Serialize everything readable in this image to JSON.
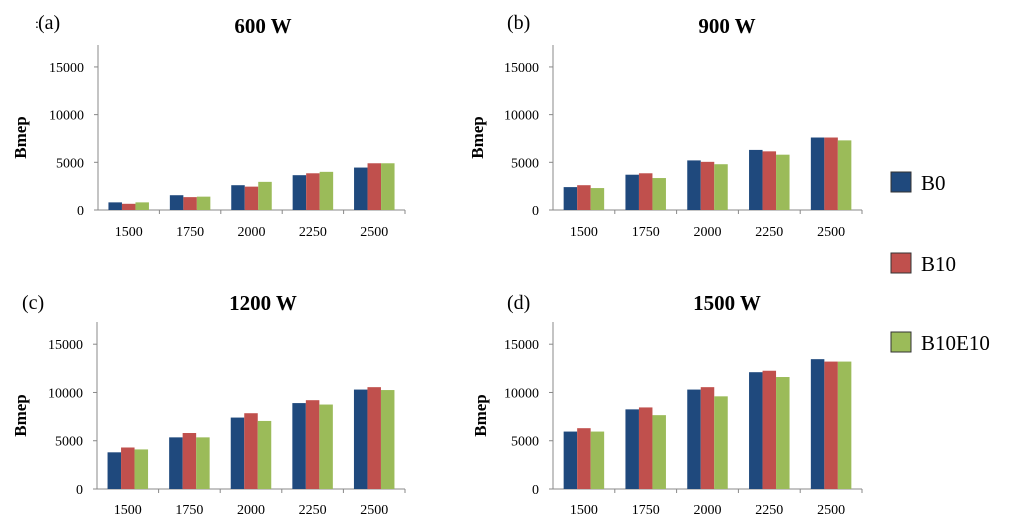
{
  "figure": {
    "stray_mark": ":"
  },
  "legend": [
    {
      "name": "B0",
      "color": "#1F497D"
    },
    {
      "name": "B10",
      "color": "#C0504D"
    },
    {
      "name": "B10E10",
      "color": "#9BBB59"
    }
  ],
  "chart_data": [
    {
      "type": "bar",
      "panel": "(a)",
      "title": "600 W",
      "ylabel": "Bmep",
      "xlabel": "",
      "categories": [
        "1500",
        "1750",
        "2000",
        "2250",
        "2500"
      ],
      "ylim": [
        0,
        15000
      ],
      "yticks": [
        0,
        5000,
        10000,
        15000
      ],
      "series": [
        {
          "name": "B0",
          "values": [
            800,
            1550,
            2600,
            3650,
            4450
          ]
        },
        {
          "name": "B10",
          "values": [
            650,
            1350,
            2450,
            3850,
            4900
          ]
        },
        {
          "name": "B10E10",
          "values": [
            800,
            1400,
            2950,
            4000,
            4900
          ]
        }
      ]
    },
    {
      "type": "bar",
      "panel": "(b)",
      "title": "900 W",
      "ylabel": "Bmep",
      "xlabel": "",
      "categories": [
        "1500",
        "1750",
        "2000",
        "2250",
        "2500"
      ],
      "ylim": [
        0,
        15000
      ],
      "yticks": [
        0,
        5000,
        10000,
        15000
      ],
      "series": [
        {
          "name": "B0",
          "values": [
            2400,
            3700,
            5200,
            6300,
            7600
          ]
        },
        {
          "name": "B10",
          "values": [
            2600,
            3850,
            5050,
            6150,
            7600
          ]
        },
        {
          "name": "B10E10",
          "values": [
            2300,
            3350,
            4800,
            5800,
            7300
          ]
        }
      ]
    },
    {
      "type": "bar",
      "panel": "(c)",
      "title": "1200 W",
      "ylabel": "Bmep",
      "xlabel": "",
      "categories": [
        "1500",
        "1750",
        "2000",
        "2250",
        "2500"
      ],
      "ylim": [
        0,
        15000
      ],
      "yticks": [
        0,
        5000,
        10000,
        15000
      ],
      "series": [
        {
          "name": "B0",
          "values": [
            3800,
            5350,
            7400,
            8900,
            10300
          ]
        },
        {
          "name": "B10",
          "values": [
            4300,
            5800,
            7850,
            9200,
            10550
          ]
        },
        {
          "name": "B10E10",
          "values": [
            4100,
            5350,
            7050,
            8750,
            10250
          ]
        }
      ]
    },
    {
      "type": "bar",
      "panel": "(d)",
      "title": "1500 W",
      "ylabel": "Bmep",
      "xlabel": "",
      "categories": [
        "1500",
        "1750",
        "2000",
        "2250",
        "2500"
      ],
      "ylim": [
        0,
        15000
      ],
      "yticks": [
        0,
        5000,
        10000,
        15000
      ],
      "series": [
        {
          "name": "B0",
          "values": [
            5950,
            8250,
            10300,
            12100,
            13450
          ]
        },
        {
          "name": "B10",
          "values": [
            6300,
            8450,
            10550,
            12250,
            13200
          ]
        },
        {
          "name": "B10E10",
          "values": [
            5950,
            7650,
            9600,
            11600,
            13200
          ]
        }
      ]
    }
  ]
}
